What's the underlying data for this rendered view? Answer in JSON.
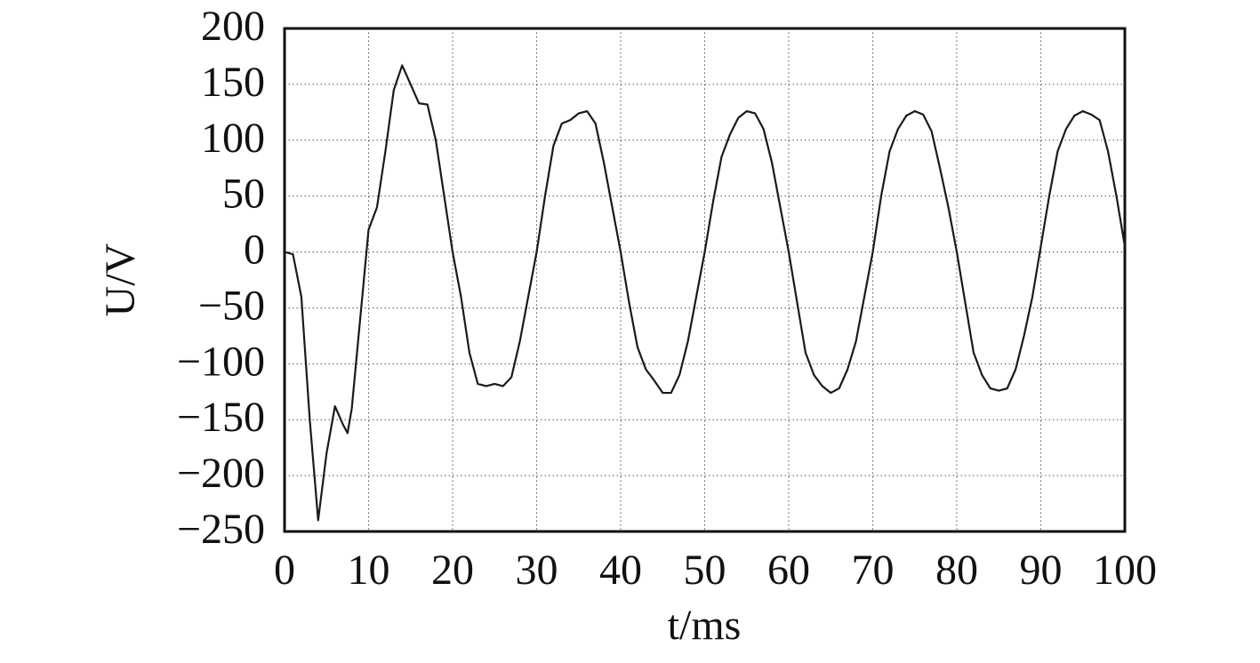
{
  "chart_data": {
    "type": "line",
    "xlabel": "t/ms",
    "ylabel": "U/V",
    "x": [
      0,
      1,
      2,
      3,
      4,
      5,
      6,
      7,
      7.5,
      8,
      9,
      10,
      11,
      12,
      13,
      14,
      15,
      16,
      17,
      18,
      19,
      20,
      21,
      22,
      23,
      24,
      25,
      26,
      27,
      28,
      29,
      30,
      31,
      32,
      33,
      34,
      35,
      36,
      37,
      38,
      39,
      40,
      41,
      42,
      43,
      44,
      45,
      46,
      47,
      48,
      49,
      50,
      51,
      52,
      53,
      54,
      55,
      56,
      57,
      58,
      59,
      60,
      61,
      62,
      63,
      64,
      65,
      66,
      67,
      68,
      69,
      70,
      71,
      72,
      73,
      74,
      75,
      76,
      77,
      78,
      79,
      80,
      81,
      82,
      83,
      84,
      85,
      86,
      87,
      88,
      89,
      90,
      91,
      92,
      93,
      94,
      95,
      96,
      97,
      98,
      99,
      100
    ],
    "series": [
      {
        "color": "#1a1a1a",
        "values": [
          0,
          -2,
          -40,
          -150,
          -240,
          -180,
          -138,
          -155,
          -162,
          -140,
          -60,
          20,
          40,
          90,
          145,
          167,
          150,
          133,
          132,
          100,
          50,
          0,
          -40,
          -90,
          -118,
          -120,
          -118,
          -120,
          -112,
          -80,
          -40,
          0,
          50,
          95,
          115,
          118,
          124,
          126,
          115,
          80,
          40,
          0,
          -45,
          -85,
          -105,
          -115,
          -126,
          -126,
          -110,
          -80,
          -40,
          0,
          45,
          85,
          105,
          120,
          126,
          124,
          110,
          80,
          40,
          0,
          -45,
          -90,
          -110,
          -120,
          -126,
          -122,
          -105,
          -80,
          -40,
          0,
          50,
          90,
          110,
          122,
          126,
          123,
          108,
          75,
          40,
          0,
          -45,
          -90,
          -110,
          -122,
          -124,
          -122,
          -105,
          -75,
          -40,
          5,
          50,
          90,
          110,
          122,
          126,
          123,
          118,
          90,
          50,
          5
        ]
      }
    ],
    "xlim": [
      0,
      100
    ],
    "xticks": [
      0,
      10,
      20,
      30,
      40,
      50,
      60,
      70,
      80,
      90,
      100
    ],
    "ylim": [
      -250,
      200
    ],
    "yticks": [
      {
        "value": -250,
        "label": "−250"
      },
      {
        "value": -200,
        "label": "−200"
      },
      {
        "value": -150,
        "label": "−150"
      },
      {
        "value": -100,
        "label": "−100"
      },
      {
        "value": -50,
        "label": "−50"
      },
      0,
      50,
      100,
      150,
      200
    ],
    "grid": true
  }
}
